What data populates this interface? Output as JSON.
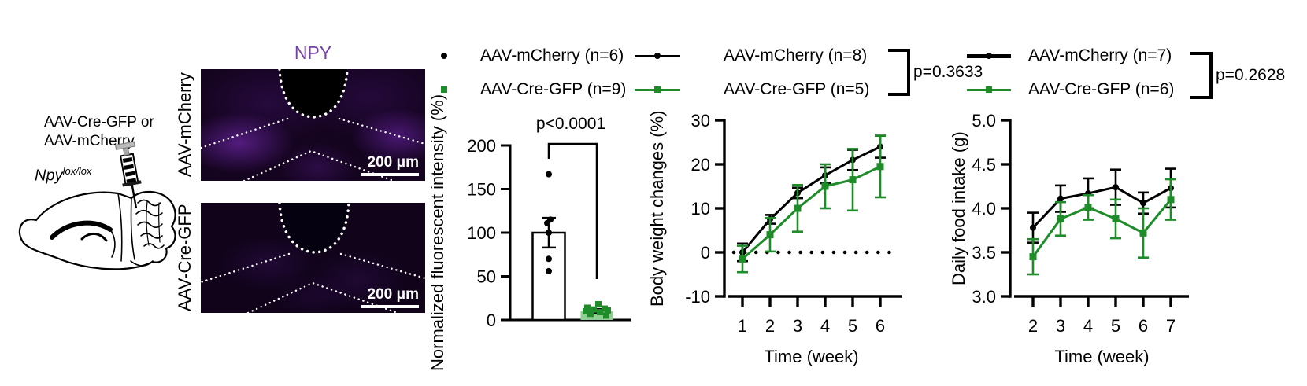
{
  "colors": {
    "green": "#1e8c28",
    "green_light": "#8fce90",
    "purple": "#7341a5",
    "black": "#000000",
    "fluorescence_bright": "#5c1c96",
    "fluorescence_dark": "#10031a"
  },
  "brain_panel": {
    "injection_line1": "AAV-Cre-GFP or",
    "injection_line2": "AAV-mCherry",
    "genotype_gene": "Npy",
    "genotype_sup": "lox/lox"
  },
  "microscopy": {
    "title": "NPY",
    "rows": [
      {
        "label": "AAV-mCherry",
        "scale_bar": "200 μm"
      },
      {
        "label": "AAV-Cre-GFP",
        "scale_bar": "200 μm"
      }
    ]
  },
  "chart_data": [
    {
      "id": "fluorescence-bar",
      "type": "bar",
      "ylabel": "Normalized fluorescent intensity (%)",
      "ylim": [
        0,
        200
      ],
      "yticks": [
        0,
        50,
        100,
        150,
        200
      ],
      "ytick_labels": [
        "0",
        "50",
        "100",
        "150",
        "200"
      ],
      "p_value": "p<0.0001",
      "legend": [
        {
          "label": "AAV-mCherry (n=6)",
          "marker": "circle",
          "color": "#000000"
        },
        {
          "label": "AAV-Cre-GFP (n=9)",
          "marker": "square",
          "color": "#1e8c28"
        }
      ],
      "categories": [
        "AAV-mCherry",
        "AAV-Cre-GFP"
      ],
      "bars": [
        {
          "mean": 100,
          "sem": 17,
          "fill": "#ffffff",
          "stroke": "#000000",
          "point_color": "#000000",
          "point_marker": "circle",
          "points": [
            167,
            115,
            111,
            100,
            70,
            56
          ],
          "jitter": [
            0,
            2,
            -2,
            0,
            0,
            0
          ]
        },
        {
          "mean": 10,
          "sem": 2.5,
          "fill": "#8fce90",
          "stroke": "none",
          "point_color": "#1e8c28",
          "point_marker": "square",
          "points": [
            18,
            14,
            13,
            12,
            11,
            10,
            9,
            7,
            5
          ],
          "jitter": [
            2,
            -12,
            10,
            -4,
            14,
            -14,
            4,
            -8,
            12
          ]
        }
      ]
    },
    {
      "id": "body-weight",
      "type": "line",
      "xlabel": "Time (week)",
      "ylabel": "Body weight changes (%)",
      "ylim": [
        -10,
        30
      ],
      "yticks": [
        -10,
        0,
        10,
        20,
        30
      ],
      "ytick_labels": [
        "-10",
        "0",
        "10",
        "20",
        "30"
      ],
      "x": [
        1,
        2,
        3,
        4,
        5,
        6
      ],
      "zero_line": true,
      "p_value": "p=0.3633",
      "series": [
        {
          "name": "AAV-mCherry (n=8)",
          "color": "#000000",
          "marker": "circle",
          "values": [
            0,
            7.5,
            13.5,
            17.5,
            21,
            24
          ],
          "sem": [
            2,
            1,
            1.2,
            1.8,
            2.3,
            2.5
          ]
        },
        {
          "name": "AAV-Cre-GFP (n=5)",
          "color": "#1e8c28",
          "marker": "square",
          "values": [
            -1.5,
            4,
            10,
            15,
            16.5,
            19.5
          ],
          "sem": [
            3,
            3.8,
            5.3,
            5,
            7,
            7
          ]
        }
      ]
    },
    {
      "id": "food-intake",
      "type": "line",
      "xlabel": "Time (week)",
      "ylabel": "Daily food intake (g)",
      "ylim": [
        3.0,
        5.0
      ],
      "yticks": [
        3.0,
        3.5,
        4.0,
        4.5,
        5.0
      ],
      "ytick_labels": [
        "3.0",
        "3.5",
        "4.0",
        "4.5",
        "5.0"
      ],
      "x": [
        2,
        3,
        4,
        5,
        6,
        7
      ],
      "zero_line": false,
      "p_value": "p=0.2628",
      "series": [
        {
          "name": "AAV-mCherry (n=7)",
          "color": "#000000",
          "marker": "circle",
          "values": [
            3.78,
            4.11,
            4.17,
            4.24,
            4.06,
            4.23
          ],
          "sem": [
            0.17,
            0.15,
            0.17,
            0.2,
            0.12,
            0.22
          ]
        },
        {
          "name": "AAV-Cre-GFP (n=6)",
          "color": "#1e8c28",
          "marker": "square",
          "values": [
            3.45,
            3.88,
            4.01,
            3.88,
            3.72,
            4.1
          ],
          "sem": [
            0.2,
            0.19,
            0.14,
            0.22,
            0.28,
            0.23
          ]
        }
      ]
    }
  ]
}
